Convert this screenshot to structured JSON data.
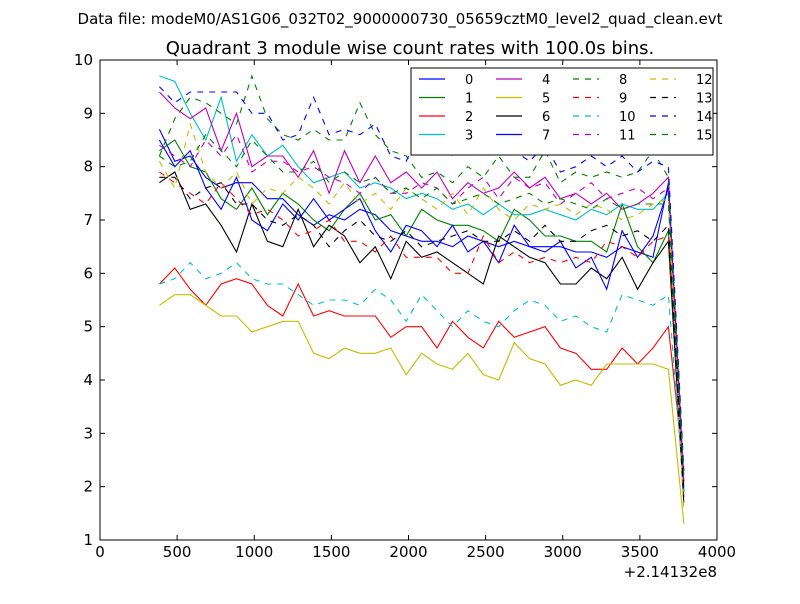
{
  "suptitle": "Data file: modeM0/AS1G06_032T02_9000000730_05659cztM0_level2_quad_clean.evt",
  "chart_data": {
    "type": "line",
    "title": "Quadrant 3 module wise count rates with 100.0s bins.",
    "xlabel": "",
    "ylabel": "",
    "x_offset_label": "+2.14132e8",
    "xlim": [
      0,
      4000
    ],
    "ylim": [
      1,
      10
    ],
    "xticks": [
      0,
      500,
      1000,
      1500,
      2000,
      2500,
      3000,
      3500,
      4000
    ],
    "yticks": [
      1,
      2,
      3,
      4,
      5,
      6,
      7,
      8,
      9,
      10
    ],
    "grid": false,
    "legend_position": "top-right",
    "legend_columns": 4,
    "x": [
      385,
      485,
      585,
      685,
      785,
      885,
      985,
      1085,
      1185,
      1285,
      1385,
      1485,
      1585,
      1685,
      1785,
      1885,
      1985,
      2085,
      2185,
      2285,
      2385,
      2485,
      2585,
      2685,
      2785,
      2885,
      2985,
      3085,
      3185,
      3285,
      3385,
      3485,
      3585,
      3685,
      3785
    ],
    "series": [
      {
        "name": "0",
        "color": "#0000ff",
        "dash": "solid",
        "values": [
          8.7,
          8.1,
          8.2,
          7.8,
          7.6,
          7.7,
          7.7,
          7.4,
          7.4,
          7.1,
          6.9,
          7.1,
          7.0,
          7.2,
          7.1,
          6.8,
          6.7,
          6.6,
          6.6,
          6.5,
          6.7,
          6.6,
          6.5,
          6.6,
          6.5,
          6.5,
          6.5,
          6.4,
          6.4,
          6.3,
          6.5,
          6.4,
          6.3,
          7.7,
          1.8
        ]
      },
      {
        "name": "1",
        "color": "#008000",
        "dash": "solid",
        "values": [
          8.3,
          8.5,
          8.0,
          7.9,
          7.4,
          7.2,
          7.6,
          7.1,
          7.5,
          7.3,
          7.0,
          6.8,
          7.2,
          7.5,
          7.0,
          7.1,
          6.7,
          7.2,
          7.0,
          6.9,
          6.9,
          6.8,
          6.6,
          7.2,
          7.0,
          6.7,
          6.7,
          6.6,
          6.6,
          6.4,
          7.3,
          6.5,
          6.2,
          6.8,
          2.0
        ]
      },
      {
        "name": "2",
        "color": "#ff0000",
        "dash": "solid",
        "values": [
          5.8,
          6.1,
          5.7,
          5.4,
          5.8,
          5.9,
          5.8,
          5.4,
          5.2,
          5.8,
          5.2,
          5.3,
          5.2,
          5.2,
          5.2,
          4.8,
          5.0,
          5.0,
          4.6,
          5.1,
          4.8,
          4.6,
          5.1,
          4.8,
          4.9,
          5.0,
          4.6,
          4.5,
          4.2,
          4.2,
          4.6,
          4.3,
          4.6,
          5.0,
          2.3
        ]
      },
      {
        "name": "3",
        "color": "#00bfbf",
        "dash": "solid",
        "values": [
          9.7,
          9.6,
          9.0,
          8.5,
          9.3,
          8.1,
          8.6,
          8.2,
          8.4,
          8.0,
          7.7,
          7.8,
          7.9,
          7.6,
          7.7,
          7.6,
          7.4,
          7.5,
          7.4,
          7.2,
          7.3,
          7.1,
          7.3,
          7.1,
          7.1,
          7.2,
          7.1,
          7.0,
          7.2,
          7.1,
          7.3,
          7.2,
          7.2,
          7.5,
          1.9
        ]
      },
      {
        "name": "4",
        "color": "#bf00bf",
        "dash": "solid",
        "values": [
          9.4,
          9.1,
          8.9,
          9.1,
          8.3,
          9.0,
          8.0,
          8.2,
          8.2,
          7.8,
          8.3,
          7.5,
          8.3,
          7.7,
          8.2,
          7.7,
          7.9,
          7.6,
          7.9,
          7.4,
          7.7,
          7.5,
          7.6,
          7.9,
          7.6,
          7.8,
          7.4,
          7.5,
          7.3,
          7.5,
          7.2,
          7.3,
          7.5,
          7.8,
          2.1
        ]
      },
      {
        "name": "5",
        "color": "#bfbf00",
        "dash": "solid",
        "values": [
          5.4,
          5.6,
          5.6,
          5.4,
          5.2,
          5.2,
          4.9,
          5.0,
          5.1,
          5.1,
          4.5,
          4.4,
          4.6,
          4.5,
          4.5,
          4.6,
          4.1,
          4.5,
          4.3,
          4.2,
          4.5,
          4.1,
          4.0,
          4.7,
          4.4,
          4.3,
          3.9,
          4.0,
          3.9,
          4.3,
          4.3,
          4.3,
          4.3,
          4.2,
          1.3
        ]
      },
      {
        "name": "6",
        "color": "#000000",
        "dash": "solid",
        "values": [
          7.7,
          7.9,
          7.2,
          7.3,
          6.9,
          6.4,
          7.3,
          6.6,
          6.5,
          7.2,
          6.5,
          6.9,
          6.7,
          6.2,
          6.5,
          5.9,
          6.6,
          6.3,
          6.4,
          6.2,
          6.0,
          5.8,
          6.7,
          6.5,
          6.3,
          6.2,
          5.8,
          5.8,
          6.1,
          5.9,
          6.3,
          5.7,
          6.2,
          6.6,
          1.7
        ]
      },
      {
        "name": "7",
        "color": "#0000ff",
        "dash": "solid",
        "values": [
          8.5,
          8.0,
          8.3,
          7.6,
          7.2,
          7.8,
          7.0,
          6.8,
          7.3,
          7.0,
          7.4,
          7.0,
          7.2,
          7.4,
          6.8,
          6.4,
          6.9,
          6.8,
          6.5,
          6.9,
          6.4,
          6.6,
          6.2,
          6.9,
          6.5,
          6.4,
          6.6,
          6.1,
          6.3,
          5.7,
          6.8,
          6.3,
          6.7,
          7.6,
          1.9
        ]
      },
      {
        "name": "8",
        "color": "#008000",
        "dash": "dashed",
        "values": [
          8.2,
          8.9,
          9.3,
          9.2,
          9.0,
          8.8,
          9.7,
          8.9,
          8.6,
          8.5,
          8.7,
          8.5,
          8.5,
          9.2,
          8.6,
          8.3,
          8.2,
          7.8,
          7.9,
          7.7,
          8.0,
          7.8,
          8.2,
          7.8,
          7.8,
          8.3,
          7.7,
          7.9,
          7.8,
          7.9,
          7.8,
          7.9,
          8.3,
          7.8,
          2.3
        ]
      },
      {
        "name": "9",
        "color": "#ff0000",
        "dash": "dashed",
        "values": [
          7.9,
          7.7,
          7.5,
          7.3,
          7.7,
          7.4,
          7.1,
          7.2,
          7.0,
          6.7,
          6.8,
          7.0,
          6.6,
          6.6,
          6.4,
          6.7,
          6.3,
          6.3,
          6.3,
          6.0,
          6.0,
          6.7,
          6.2,
          6.4,
          6.2,
          6.3,
          6.2,
          6.3,
          6.2,
          6.6,
          6.5,
          6.3,
          6.6,
          6.7,
          2.1
        ]
      },
      {
        "name": "10",
        "color": "#00bfbf",
        "dash": "dashed",
        "values": [
          5.8,
          5.9,
          6.2,
          5.9,
          6.0,
          6.2,
          5.9,
          5.8,
          5.8,
          5.6,
          5.4,
          5.5,
          5.5,
          5.4,
          5.7,
          5.5,
          5.1,
          5.6,
          5.3,
          5.0,
          5.3,
          5.1,
          5.0,
          5.3,
          5.5,
          5.4,
          5.1,
          5.2,
          5.0,
          4.9,
          5.6,
          5.5,
          5.4,
          5.6,
          1.9
        ]
      },
      {
        "name": "11",
        "color": "#bf00bf",
        "dash": "dashed",
        "values": [
          8.4,
          8.2,
          8.0,
          8.5,
          8.2,
          8.6,
          7.9,
          8.1,
          8.1,
          7.9,
          8.0,
          7.8,
          7.7,
          7.5,
          7.8,
          7.5,
          7.5,
          7.7,
          7.6,
          7.3,
          7.6,
          7.8,
          7.4,
          7.8,
          7.6,
          7.7,
          7.3,
          7.5,
          7.7,
          7.4,
          7.5,
          7.6,
          7.4,
          7.6,
          2.0
        ]
      },
      {
        "name": "12",
        "color": "#bfbf00",
        "dash": "dashed",
        "values": [
          8.1,
          7.6,
          8.8,
          7.9,
          7.6,
          7.9,
          7.3,
          7.6,
          7.5,
          7.8,
          7.6,
          7.3,
          7.7,
          7.3,
          7.5,
          7.2,
          7.6,
          7.4,
          7.2,
          7.5,
          7.1,
          7.6,
          7.2,
          7.0,
          7.3,
          7.2,
          7.3,
          7.1,
          7.3,
          7.2,
          7.0,
          7.1,
          7.3,
          7.4,
          1.5
        ]
      },
      {
        "name": "13",
        "color": "#000000",
        "dash": "dashed",
        "values": [
          7.8,
          7.8,
          7.4,
          7.6,
          7.7,
          7.3,
          7.3,
          7.0,
          6.9,
          7.1,
          6.9,
          6.5,
          6.8,
          7.0,
          6.7,
          6.6,
          6.8,
          6.5,
          6.6,
          6.7,
          6.8,
          6.6,
          6.6,
          6.8,
          6.6,
          6.9,
          6.6,
          6.6,
          6.8,
          6.9,
          6.7,
          6.8,
          6.6,
          6.9,
          1.9
        ]
      },
      {
        "name": "14",
        "color": "#0000ff",
        "dash": "dashed",
        "values": [
          9.5,
          9.2,
          9.4,
          9.4,
          9.4,
          9.4,
          9.0,
          9.0,
          8.5,
          8.6,
          9.3,
          8.6,
          8.7,
          8.6,
          8.8,
          8.2,
          8.1,
          8.7,
          8.6,
          8.2,
          8.4,
          8.8,
          8.3,
          8.3,
          8.1,
          8.4,
          7.9,
          8.0,
          8.2,
          8.0,
          8.2,
          7.9,
          8.1,
          8.0,
          2.3
        ]
      },
      {
        "name": "15",
        "color": "#008000",
        "dash": "dashed",
        "values": [
          8.2,
          8.0,
          8.1,
          8.6,
          8.3,
          8.0,
          8.5,
          8.2,
          7.9,
          7.9,
          8.1,
          7.7,
          7.9,
          7.7,
          7.8,
          7.5,
          7.6,
          7.4,
          7.6,
          7.3,
          7.4,
          7.5,
          7.3,
          7.4,
          7.5,
          7.3,
          7.4,
          7.3,
          7.2,
          7.4,
          7.2,
          7.3,
          7.3,
          7.3,
          2.2
        ]
      }
    ]
  }
}
